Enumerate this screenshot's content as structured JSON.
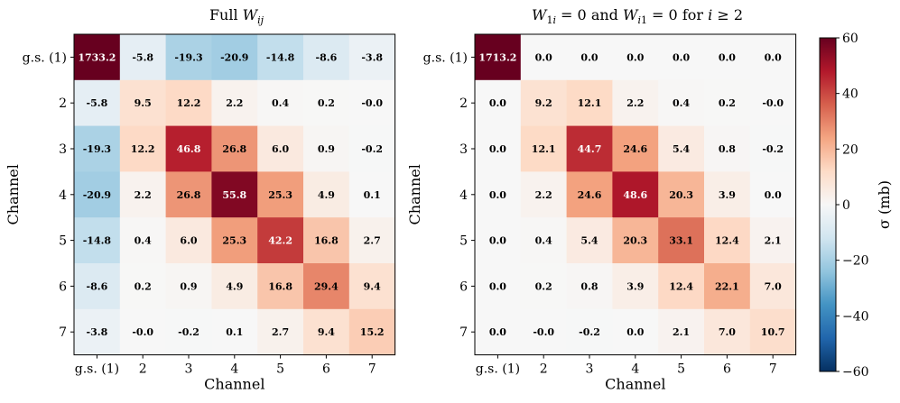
{
  "chart_data": {
    "type": "heatmap",
    "colorbar": {
      "label": "σ (mb)",
      "vmin": -60,
      "vmax": 60,
      "ticks": [
        60,
        40,
        20,
        0,
        -20,
        -40,
        -60
      ],
      "tick_labels": [
        "60",
        "40",
        "20",
        "0",
        "−20",
        "−40",
        "−60"
      ],
      "colormap": "RdBu_r",
      "colors": [
        "#053061",
        "#2166ac",
        "#4393c3",
        "#92c5de",
        "#d1e5f0",
        "#f7f7f7",
        "#fddbc7",
        "#f4a582",
        "#d6604d",
        "#b2182b",
        "#67001f"
      ]
    },
    "panels": [
      {
        "title": "Full W_ij",
        "xlabel": "Channel",
        "ylabel": "Channel",
        "categories": [
          "g.s. (1)",
          "2",
          "3",
          "4",
          "5",
          "6",
          "7"
        ],
        "matrix": [
          [
            1733.2,
            -5.8,
            -19.3,
            -20.9,
            -14.8,
            -8.6,
            -3.8
          ],
          [
            -5.8,
            9.5,
            12.2,
            2.2,
            0.4,
            0.2,
            -0.0
          ],
          [
            -19.3,
            12.2,
            46.8,
            26.8,
            6.0,
            0.9,
            -0.2
          ],
          [
            -20.9,
            2.2,
            26.8,
            55.8,
            25.3,
            4.9,
            0.1
          ],
          [
            -14.8,
            0.4,
            6.0,
            25.3,
            42.2,
            16.8,
            2.7
          ],
          [
            -8.6,
            0.2,
            0.9,
            4.9,
            16.8,
            29.4,
            9.4
          ],
          [
            -3.8,
            -0.0,
            -0.2,
            0.1,
            2.7,
            9.4,
            15.2
          ]
        ],
        "labels": [
          [
            "1733.2",
            "-5.8",
            "-19.3",
            "-20.9",
            "-14.8",
            "-8.6",
            "-3.8"
          ],
          [
            "-5.8",
            "9.5",
            "12.2",
            "2.2",
            "0.4",
            "0.2",
            "-0.0"
          ],
          [
            "-19.3",
            "12.2",
            "46.8",
            "26.8",
            "6.0",
            "0.9",
            "-0.2"
          ],
          [
            "-20.9",
            "2.2",
            "26.8",
            "55.8",
            "25.3",
            "4.9",
            "0.1"
          ],
          [
            "-14.8",
            "0.4",
            "6.0",
            "25.3",
            "42.2",
            "16.8",
            "2.7"
          ],
          [
            "-8.6",
            "0.2",
            "0.9",
            "4.9",
            "16.8",
            "29.4",
            "9.4"
          ],
          [
            "-3.8",
            "-0.0",
            "-0.2",
            "0.1",
            "2.7",
            "9.4",
            "15.2"
          ]
        ]
      },
      {
        "title": "W_1i = 0 and W_i1 = 0 for i ≥ 2",
        "xlabel": "Channel",
        "ylabel": "Channel",
        "categories": [
          "g.s. (1)",
          "2",
          "3",
          "4",
          "5",
          "6",
          "7"
        ],
        "matrix": [
          [
            1713.2,
            0.0,
            0.0,
            0.0,
            0.0,
            0.0,
            0.0
          ],
          [
            0.0,
            9.2,
            12.1,
            2.2,
            0.4,
            0.2,
            -0.0
          ],
          [
            0.0,
            12.1,
            44.7,
            24.6,
            5.4,
            0.8,
            -0.2
          ],
          [
            0.0,
            2.2,
            24.6,
            48.6,
            20.3,
            3.9,
            0.0
          ],
          [
            0.0,
            0.4,
            5.4,
            20.3,
            33.1,
            12.4,
            2.1
          ],
          [
            0.0,
            0.2,
            0.8,
            3.9,
            12.4,
            22.1,
            7.0
          ],
          [
            0.0,
            -0.0,
            -0.2,
            0.0,
            2.1,
            7.0,
            10.7
          ]
        ],
        "labels": [
          [
            "1713.2",
            "0.0",
            "0.0",
            "0.0",
            "0.0",
            "0.0",
            "0.0"
          ],
          [
            "0.0",
            "9.2",
            "12.1",
            "2.2",
            "0.4",
            "0.2",
            "-0.0"
          ],
          [
            "0.0",
            "12.1",
            "44.7",
            "24.6",
            "5.4",
            "0.8",
            "-0.2"
          ],
          [
            "0.0",
            "2.2",
            "24.6",
            "48.6",
            "20.3",
            "3.9",
            "0.0"
          ],
          [
            "0.0",
            "0.4",
            "5.4",
            "20.3",
            "33.1",
            "12.4",
            "2.1"
          ],
          [
            "0.0",
            "0.2",
            "0.8",
            "3.9",
            "12.4",
            "22.1",
            "7.0"
          ],
          [
            "0.0",
            "-0.0",
            "-0.2",
            "0.0",
            "2.1",
            "7.0",
            "10.7"
          ]
        ]
      }
    ]
  }
}
